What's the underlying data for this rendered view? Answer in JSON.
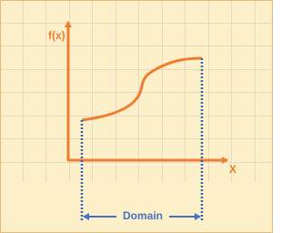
{
  "labels": {
    "y_axis": "f(x)",
    "x_axis": "X",
    "domain": "Domain"
  }
}
